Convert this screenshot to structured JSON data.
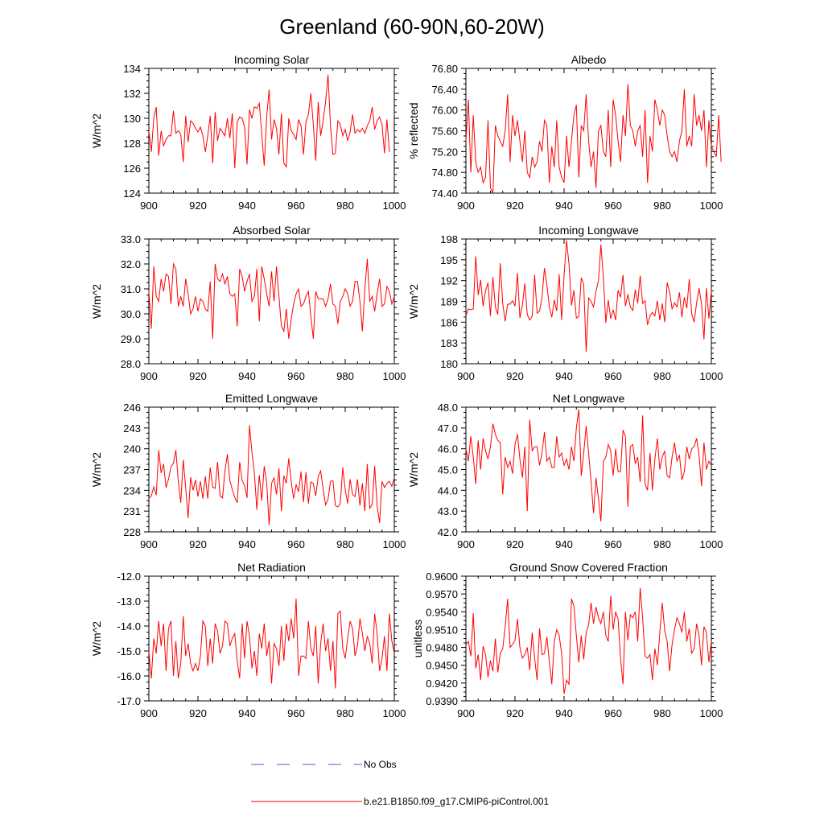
{
  "figure_title": "Greenland (60-90N,60-20W)",
  "colors": {
    "model": "#ff0000",
    "obs": "#4a5fd0",
    "axis": "#000000"
  },
  "legend": [
    {
      "label": "No Obs",
      "style": "dashed",
      "color": "#4a5fd0"
    },
    {
      "label": "b.e21.B1850.f09_g17.CMIP6-piControl.001",
      "style": "solid",
      "color": "#ff0000"
    }
  ],
  "chart_data": [
    {
      "type": "line",
      "title": "Incoming Solar",
      "xlabel": "",
      "ylabel": "W/m^2",
      "xlim": [
        900,
        1000
      ],
      "ylim": [
        124,
        134
      ],
      "xticks": [
        900,
        920,
        940,
        960,
        980,
        1000
      ],
      "xticklabels": [
        "900",
        "920",
        "940",
        "960",
        "980",
        "1000"
      ],
      "yticks": [
        124,
        126,
        128,
        130,
        132,
        134
      ],
      "yticklabels": [
        "124",
        "126",
        "128",
        "130",
        "132",
        "134"
      ],
      "x0": 900,
      "values": [
        129.0,
        127.3,
        130.0,
        130.9,
        127.0,
        129.0,
        127.8,
        128.3,
        128.6,
        128.6,
        130.6,
        128.8,
        129.0,
        128.7,
        126.5,
        130.2,
        128.1,
        129.8,
        129.6,
        129.2,
        128.9,
        129.3,
        128.6,
        127.3,
        128.6,
        130.2,
        126.4,
        130.5,
        128.2,
        129.2,
        128.9,
        128.6,
        130.0,
        128.4,
        130.4,
        126.0,
        129.7,
        130.1,
        130.0,
        129.3,
        126.3,
        130.7,
        130.0,
        130.9,
        130.8,
        131.2,
        128.7,
        126.2,
        130.1,
        132.3,
        128.3,
        129.9,
        129.2,
        127.1,
        130.4,
        126.4,
        126.1,
        130.0,
        129.0,
        128.7,
        128.3,
        129.9,
        129.4,
        127.1,
        129.7,
        130.3,
        132.0,
        129.5,
        126.6,
        131.3,
        128.6,
        129.8,
        131.3,
        133.5,
        129.4,
        127.1,
        127.2,
        129.8,
        129.5,
        128.6,
        129.1,
        128.2,
        128.9,
        130.3,
        128.8,
        129.1,
        128.9,
        129.2,
        128.8,
        129.4,
        129.8,
        130.9,
        129.1,
        129.8,
        130.1,
        129.5,
        127.2,
        129.9,
        127.3
      ]
    },
    {
      "type": "line",
      "title": "Albedo",
      "xlabel": "",
      "ylabel": "% reflected",
      "xlim": [
        900,
        1000
      ],
      "ylim": [
        74.4,
        76.8
      ],
      "xticks": [
        900,
        920,
        940,
        960,
        980,
        1000
      ],
      "xticklabels": [
        "900",
        "920",
        "940",
        "960",
        "980",
        "1000"
      ],
      "yticks": [
        74.4,
        74.8,
        75.2,
        75.6,
        76.0,
        76.4,
        76.8
      ],
      "yticklabels": [
        "74.40",
        "74.80",
        "75.20",
        "75.60",
        "76.00",
        "76.40",
        "76.80"
      ],
      "x0": 900,
      "values": [
        75.4,
        76.2,
        74.8,
        75.9,
        75.0,
        74.8,
        74.9,
        74.6,
        74.7,
        75.8,
        74.5,
        74.4,
        75.7,
        75.5,
        75.4,
        75.3,
        75.6,
        76.3,
        75.0,
        75.9,
        75.5,
        75.8,
        75.4,
        75.0,
        75.6,
        74.8,
        74.7,
        75.1,
        74.9,
        75.0,
        75.4,
        75.2,
        75.8,
        75.7,
        74.6,
        75.3,
        74.9,
        75.8,
        74.9,
        74.7,
        74.6,
        75.5,
        74.9,
        75.4,
        75.9,
        76.1,
        74.7,
        75.7,
        75.6,
        76.3,
        75.4,
        74.9,
        75.2,
        74.5,
        75.6,
        75.7,
        75.2,
        75.1,
        76.0,
        74.9,
        76.2,
        75.9,
        75.4,
        75.0,
        75.9,
        75.5,
        76.5,
        75.7,
        75.6,
        75.3,
        75.6,
        75.7,
        75.1,
        76.0,
        74.6,
        75.5,
        75.2,
        76.2,
        76.0,
        75.7,
        76.0,
        75.9,
        75.5,
        75.2,
        75.1,
        75.2,
        75.0,
        75.4,
        75.6,
        76.4,
        75.3,
        75.5,
        75.3,
        76.3,
        75.7,
        75.9,
        75.6,
        76.0,
        74.9,
        75.8,
        75.3,
        75.2,
        75.1,
        75.9,
        75.0
      ],
      "values_note": "series length matches x range"
    },
    {
      "type": "line",
      "title": "Absorbed Solar",
      "xlabel": "",
      "ylabel": "W/m^2",
      "xlim": [
        900,
        1000
      ],
      "ylim": [
        28.0,
        33.0
      ],
      "xticks": [
        900,
        920,
        940,
        960,
        980,
        1000
      ],
      "xticklabels": [
        "900",
        "920",
        "940",
        "960",
        "980",
        "1000"
      ],
      "yticks": [
        28,
        29,
        30,
        31,
        32,
        33
      ],
      "yticklabels": [
        "28.0",
        "29.0",
        "30.0",
        "31.0",
        "32.0",
        "33.0"
      ],
      "x0": 900,
      "values": [
        30.9,
        29.4,
        31.9,
        30.7,
        30.5,
        31.4,
        30.9,
        31.6,
        31.5,
        30.4,
        32.0,
        31.8,
        30.3,
        30.7,
        30.3,
        31.4,
        30.8,
        30.0,
        30.2,
        30.7,
        30.1,
        30.6,
        30.5,
        30.2,
        30.1,
        31.3,
        29.0,
        32.0,
        31.4,
        31.3,
        31.6,
        31.2,
        31.5,
        30.8,
        30.7,
        30.8,
        29.5,
        31.8,
        31.5,
        30.9,
        31.3,
        31.6,
        30.5,
        30.7,
        31.8,
        29.7,
        31.9,
        31.4,
        30.8,
        30.3,
        31.7,
        30.5,
        31.9,
        30.7,
        29.5,
        29.3,
        30.2,
        29.0,
        29.8,
        30.4,
        30.8,
        31.0,
        30.3,
        30.4,
        30.7,
        30.9,
        29.9,
        29.0,
        30.9,
        30.6,
        30.6,
        30.6,
        30.3,
        30.6,
        31.2,
        30.4,
        30.3,
        29.6,
        30.5,
        30.7,
        31.0,
        30.8,
        30.3,
        30.5,
        31.3,
        31.3,
        30.5,
        29.3,
        31.0,
        32.2,
        30.5,
        30.7,
        30.1,
        30.8,
        31.4,
        30.3,
        30.4,
        31.1,
        30.9,
        30.4,
        30.7
      ],
      "values_note": "series length matches x range"
    },
    {
      "type": "line",
      "title": "Incoming Longwave",
      "xlabel": "",
      "ylabel": "W/m^2",
      "xlim": [
        900,
        1000
      ],
      "ylim": [
        180,
        198
      ],
      "xticks": [
        900,
        920,
        940,
        960,
        980,
        1000
      ],
      "xticklabels": [
        "900",
        "920",
        "940",
        "960",
        "980",
        "1000"
      ],
      "yticks": [
        180,
        183,
        186,
        189,
        192,
        195,
        198
      ],
      "yticklabels": [
        "180",
        "183",
        "186",
        "189",
        "192",
        "195",
        "198"
      ],
      "x0": 900,
      "values": [
        186.9,
        187.9,
        187.8,
        187.9,
        195.5,
        189.9,
        192.1,
        188.3,
        190.5,
        191.7,
        186.9,
        192.5,
        188.2,
        187.1,
        194.5,
        188.7,
        186.1,
        188.6,
        188.6,
        189.1,
        188.3,
        193.1,
        186.6,
        188.4,
        191.6,
        187.1,
        186.3,
        186.9,
        192.8,
        187.3,
        187.6,
        189.6,
        193.8,
        191.4,
        188.2,
        186.7,
        189.2,
        187.6,
        192.9,
        186.3,
        192.7,
        197.8,
        194.4,
        188.4,
        190.6,
        186.6,
        186.8,
        192.4,
        191.5,
        181.7,
        189.5,
        189.0,
        188.2,
        190.4,
        192.0,
        197.2,
        192.5,
        185.9,
        189.2,
        186.5,
        187.8,
        186.3,
        190.6,
        189.6,
        192.8,
        188.3,
        190.0,
        188.2,
        187.7,
        190.7,
        188.7,
        192.7,
        188.7,
        189.1,
        185.6,
        186.9,
        187.4,
        186.9,
        189.1,
        186.3,
        188.7,
        186.0,
        191.7,
        190.4,
        187.9,
        188.8,
        188.2,
        190.3,
        186.7,
        189.6,
        188.0,
        192.2,
        187.2,
        186.0,
        188.8,
        190.9,
        188.6,
        183.5,
        190.9,
        186.5,
        190.6
      ],
      "values_note": "series length matches x range"
    },
    {
      "type": "line",
      "title": "Emitted Longwave",
      "xlabel": "",
      "ylabel": "W/m^2",
      "xlim": [
        900,
        1000
      ],
      "ylim": [
        228,
        246
      ],
      "xticks": [
        900,
        920,
        940,
        960,
        980,
        1000
      ],
      "xticklabels": [
        "900",
        "920",
        "940",
        "960",
        "980",
        "1000"
      ],
      "yticks": [
        228,
        231,
        234,
        237,
        240,
        243,
        246
      ],
      "yticklabels": [
        "228",
        "231",
        "234",
        "237",
        "240",
        "243",
        "246"
      ],
      "x0": 900,
      "values": [
        232.8,
        233.2,
        234.5,
        233.3,
        239.8,
        236.5,
        237.8,
        234.4,
        235.6,
        237.4,
        237.9,
        239.8,
        235.3,
        232.2,
        238.4,
        234.4,
        230.0,
        235.9,
        234.0,
        235.5,
        233.1,
        235.3,
        232.8,
        236.0,
        232.8,
        237.3,
        234.5,
        234.3,
        238.1,
        233.2,
        232.9,
        236.8,
        239.2,
        235.4,
        234.1,
        233.0,
        232.2,
        238.1,
        235.4,
        234.7,
        232.9,
        243.4,
        239.5,
        236.4,
        231.2,
        236.2,
        232.5,
        237.5,
        235.1,
        229.0,
        235.0,
        235.8,
        233.4,
        237.2,
        231.0,
        236.1,
        235.0,
        238.6,
        235.2,
        232.8,
        234.8,
        233.8,
        236.7,
        232.3,
        236.6,
        232.1,
        235.2,
        235.0,
        233.2,
        236.0,
        236.8,
        234.2,
        231.9,
        232.7,
        235.3,
        235.4,
        231.8,
        231.6,
        232.1,
        237.3,
        234.1,
        232.1,
        235.6,
        233.4,
        233.1,
        235.6,
        231.8,
        235.0,
        231.0,
        237.8,
        231.4,
        232.0,
        237.5,
        231.8,
        229.3,
        235.3,
        234.4,
        235.0,
        235.3,
        234.6,
        235.8
      ],
      "values_note": "series length matches x range"
    },
    {
      "type": "line",
      "title": "Net Longwave",
      "xlabel": "",
      "ylabel": "W/m^2",
      "xlim": [
        900,
        1000
      ],
      "ylim": [
        42.0,
        48.0
      ],
      "xticks": [
        900,
        920,
        940,
        960,
        980,
        1000
      ],
      "xticklabels": [
        "900",
        "920",
        "940",
        "960",
        "980",
        "1000"
      ],
      "yticks": [
        42,
        43,
        44,
        45,
        46,
        47,
        48
      ],
      "yticklabels": [
        "42.0",
        "43.0",
        "44.0",
        "45.0",
        "46.0",
        "47.0",
        "48.0"
      ],
      "x0": 900,
      "values": [
        46.0,
        45.4,
        46.6,
        45.6,
        44.3,
        46.4,
        45.0,
        46.5,
        45.9,
        45.5,
        46.1,
        47.2,
        46.7,
        46.4,
        46.3,
        43.8,
        45.6,
        45.1,
        45.4,
        44.8,
        46.2,
        46.7,
        45.5,
        44.6,
        46.1,
        43.0,
        47.4,
        45.9,
        46.1,
        46.1,
        45.2,
        45.8,
        46.8,
        45.4,
        45.6,
        45.1,
        45.1,
        46.6,
        45.6,
        45.8,
        45.2,
        45.5,
        45.0,
        46.1,
        45.4,
        47.0,
        47.9,
        44.7,
        45.8,
        47.1,
        45.8,
        44.4,
        42.9,
        44.6,
        43.6,
        42.5,
        45.4,
        45.6,
        46.2,
        45.9,
        44.7,
        46.0,
        44.9,
        44.9,
        46.9,
        46.6,
        43.2,
        46.1,
        46.2,
        45.3,
        45.6,
        44.4,
        47.6,
        44.3,
        44.0,
        45.8,
        44.0,
        45.5,
        46.5,
        45.0,
        45.6,
        45.9,
        44.7,
        44.6,
        45.6,
        46.3,
        45.4,
        45.7,
        44.5,
        44.9,
        46.1,
        45.5,
        46.0,
        46.1,
        46.5,
        45.7,
        44.2,
        46.3,
        45.0,
        45.4,
        45.2
      ],
      "values_note": "series length matches x range"
    },
    {
      "type": "line",
      "title": "Net Radiation",
      "xlabel": "",
      "ylabel": "W/m^2",
      "xlim": [
        900,
        1000
      ],
      "ylim": [
        -17.0,
        -12.0
      ],
      "xticks": [
        900,
        920,
        940,
        960,
        980,
        1000
      ],
      "xticklabels": [
        "900",
        "920",
        "940",
        "960",
        "980",
        "1000"
      ],
      "yticks": [
        -17,
        -16,
        -15,
        -14,
        -13,
        -12
      ],
      "yticklabels": [
        "-17.0",
        "-16.0",
        "-15.0",
        "-14.0",
        "-13.0",
        "-12.0"
      ],
      "x0": 900,
      "values": [
        -15.0,
        -16.1,
        -14.5,
        -15.1,
        -13.8,
        -14.8,
        -13.9,
        -15.8,
        -14.1,
        -13.8,
        -16.0,
        -14.6,
        -16.1,
        -15.5,
        -13.6,
        -15.2,
        -14.7,
        -15.5,
        -15.8,
        -15.5,
        -15.8,
        -15.2,
        -13.8,
        -14.0,
        -15.6,
        -14.5,
        -15.5,
        -13.9,
        -14.2,
        -15.1,
        -14.8,
        -13.8,
        -13.9,
        -14.8,
        -14.5,
        -14.3,
        -15.4,
        -16.1,
        -13.9,
        -15.3,
        -13.8,
        -14.4,
        -15.7,
        -15.0,
        -16.0,
        -14.3,
        -14.9,
        -13.9,
        -15.2,
        -14.6,
        -16.3,
        -14.7,
        -14.9,
        -15.6,
        -14.0,
        -15.4,
        -13.9,
        -14.6,
        -13.7,
        -14.5,
        -12.9,
        -16.0,
        -15.2,
        -15.2,
        -15.3,
        -13.8,
        -14.9,
        -15.2,
        -14.0,
        -16.3,
        -14.7,
        -13.9,
        -15.0,
        -14.5,
        -15.8,
        -14.6,
        -16.5,
        -13.5,
        -13.4,
        -14.9,
        -15.3,
        -14.5,
        -13.8,
        -14.1,
        -15.2,
        -14.8,
        -13.7,
        -14.3,
        -15.0,
        -14.4,
        -14.7,
        -15.5,
        -13.5,
        -14.3,
        -15.8,
        -15.3,
        -14.4,
        -15.8,
        -13.5,
        -14.6,
        -15.1
      ],
      "values_note": "series length matches x range"
    },
    {
      "type": "line",
      "title": "Ground Snow Covered Fraction",
      "xlabel": "",
      "ylabel": "unitless",
      "xlim": [
        900,
        1000
      ],
      "ylim": [
        0.939,
        0.96
      ],
      "xticks": [
        900,
        920,
        940,
        960,
        980,
        1000
      ],
      "xticklabels": [
        "900",
        "920",
        "940",
        "960",
        "980",
        "1000"
      ],
      "yticks": [
        0.939,
        0.942,
        0.945,
        0.948,
        0.951,
        0.954,
        0.957,
        0.96
      ],
      "yticklabels": [
        "0.9390",
        "0.9420",
        "0.9450",
        "0.9480",
        "0.9510",
        "0.9540",
        "0.9570",
        "0.9600"
      ],
      "x0": 900,
      "values": [
        0.9485,
        0.949,
        0.9465,
        0.9538,
        0.9445,
        0.9468,
        0.9425,
        0.9482,
        0.9468,
        0.943,
        0.9458,
        0.944,
        0.9495,
        0.9438,
        0.947,
        0.9478,
        0.9515,
        0.9562,
        0.948,
        0.9485,
        0.9492,
        0.9528,
        0.948,
        0.9462,
        0.9468,
        0.948,
        0.9442,
        0.9505,
        0.9462,
        0.9425,
        0.9512,
        0.9468,
        0.947,
        0.9498,
        0.9455,
        0.9418,
        0.949,
        0.951,
        0.95,
        0.947,
        0.9402,
        0.9425,
        0.9418,
        0.9562,
        0.955,
        0.95,
        0.9455,
        0.95,
        0.946,
        0.9505,
        0.9518,
        0.9555,
        0.952,
        0.9548,
        0.953,
        0.952,
        0.954,
        0.95,
        0.949,
        0.9567,
        0.951,
        0.954,
        0.9528,
        0.9462,
        0.9418,
        0.954,
        0.9492,
        0.9535,
        0.953,
        0.954,
        0.949,
        0.958,
        0.953,
        0.9465,
        0.9462,
        0.9468,
        0.9425,
        0.9478,
        0.945,
        0.9505,
        0.9555,
        0.9508,
        0.949,
        0.944,
        0.9485,
        0.951,
        0.953,
        0.952,
        0.9505,
        0.954,
        0.949,
        0.9512,
        0.947,
        0.9478,
        0.952,
        0.95,
        0.945,
        0.9515,
        0.9505,
        0.9455,
        0.949
      ],
      "values_note": "series length matches x range"
    }
  ]
}
